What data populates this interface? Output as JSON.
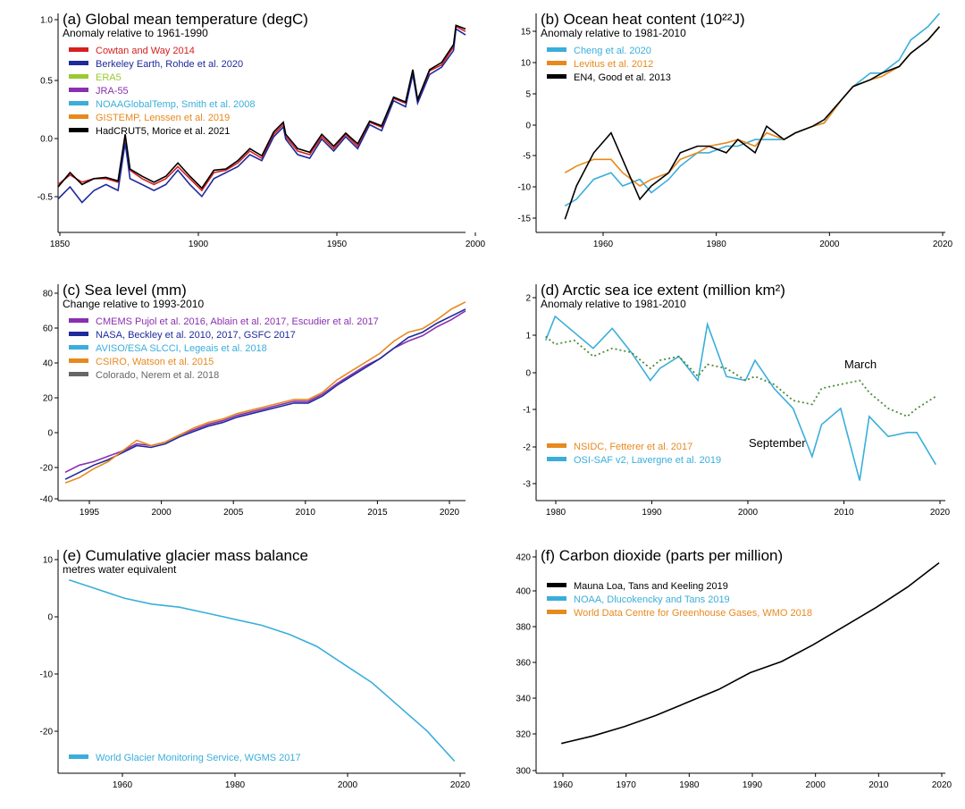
{
  "panels": [
    {
      "id": "a",
      "title": "(a) Global mean temperature (degC)",
      "subtitle": "Anomaly relative to 1961-1990",
      "x_ticks": [
        1850,
        1900,
        1950,
        2000
      ],
      "y_ticks": [
        "1.0",
        "0.5",
        "0.0",
        "-0.5"
      ],
      "legend": [
        {
          "label": "Cowtan and Way 2014",
          "color": "#d62020"
        },
        {
          "label": "Berkeley Earth, Rohde et al. 2020",
          "color": "#1f2a9c"
        },
        {
          "label": "ERA5",
          "color": "#9ac931"
        },
        {
          "label": "JRA-55",
          "color": "#8a2fb0"
        },
        {
          "label": "NOAAGlobalTemp, Smith et al. 2008",
          "color": "#3aaedb"
        },
        {
          "label": "GISTEMP, Lenssen et al. 2019",
          "color": "#e8891e"
        },
        {
          "label": "HadCRUT5, Morice et al. 2021",
          "color": "#000000"
        }
      ]
    },
    {
      "id": "b",
      "title": "(b) Ocean heat content (10²²J)",
      "subtitle": "Anomaly relative to 1981-2010",
      "x_ticks": [
        1960,
        1980,
        2000,
        2020
      ],
      "y_ticks": [
        "15",
        "10",
        "5",
        "0",
        "-5",
        "-10",
        "-15"
      ],
      "legend": [
        {
          "label": "Cheng et al. 2020",
          "color": "#3aaedb"
        },
        {
          "label": "Levitus et al. 2012",
          "color": "#e8891e"
        },
        {
          "label": "EN4, Good et al. 2013",
          "color": "#000000"
        }
      ]
    },
    {
      "id": "c",
      "title": "(c) Sea level (mm)",
      "subtitle": "Change relative to 1993-2010",
      "x_ticks": [
        1995,
        2000,
        2005,
        2010,
        2015,
        2020
      ],
      "y_ticks": [
        "80",
        "60",
        "40",
        "20",
        "0",
        "-20",
        "-40"
      ],
      "legend": [
        {
          "label": "CMEMS Pujol et al. 2016, Ablain et al. 2017, Escudier et al. 2017",
          "color": "#8a2fb0"
        },
        {
          "label": "NASA, Beckley et al. 2010, 2017, GSFC 2017",
          "color": "#1f2a9c"
        },
        {
          "label": "AVISO/ESA SLCCI, Legeais et al. 2018",
          "color": "#3aaedb"
        },
        {
          "label": "CSIRO, Watson et al. 2015",
          "color": "#e8891e"
        },
        {
          "label": "Colorado, Nerem et al. 2018",
          "color": "#666666"
        }
      ]
    },
    {
      "id": "d",
      "title": "(d) Arctic sea ice extent (million km²)",
      "subtitle": "Anomaly relative to 1981-2010",
      "x_ticks": [
        1980,
        1990,
        2000,
        2010,
        2020
      ],
      "y_ticks": [
        "2",
        "1",
        "0",
        "-1",
        "-2",
        "-3"
      ],
      "annotations": {
        "march": "March",
        "september": "September"
      },
      "legend": [
        {
          "label": "NSIDC, Fetterer et al. 2017",
          "color": "#e8891e"
        },
        {
          "label": "OSI-SAF v2, Lavergne et al. 2019",
          "color": "#3aaedb"
        }
      ]
    },
    {
      "id": "e",
      "title": "(e) Cumulative glacier mass balance",
      "subtitle": "metres water equivalent",
      "x_ticks": [
        1960,
        1980,
        2000,
        2020
      ],
      "y_ticks": [
        "10",
        "0",
        "-10",
        "-20"
      ],
      "legend": [
        {
          "label": "World Glacier Monitoring Service, WGMS 2017",
          "color": "#3aaedb"
        }
      ]
    },
    {
      "id": "f",
      "title": "(f) Carbon dioxide (parts per million)",
      "subtitle": "",
      "x_ticks": [
        1960,
        1970,
        1980,
        1990,
        2000,
        2010,
        2020
      ],
      "y_ticks": [
        "420",
        "400",
        "380",
        "360",
        "340",
        "320",
        "300"
      ],
      "legend": [
        {
          "label": "Mauna Loa, Tans and Keeling 2019",
          "color": "#000000"
        },
        {
          "label": "NOAA, Dlucokencky and Tans 2019",
          "color": "#3aaedb"
        },
        {
          "label": "World Data Centre for Greenhouse Gases, WMO 2018",
          "color": "#e8891e"
        }
      ]
    }
  ],
  "chart_data": [
    {
      "type": "line",
      "title": "(a) Global mean temperature (degC)",
      "xlim": [
        1850,
        2020
      ],
      "ylim": [
        -0.8,
        1.03
      ],
      "x": [
        1850,
        1855,
        1860,
        1865,
        1870,
        1875,
        1878,
        1880,
        1885,
        1890,
        1895,
        1900,
        1905,
        1910,
        1915,
        1920,
        1925,
        1930,
        1935,
        1940,
        1944,
        1945,
        1950,
        1955,
        1960,
        1965,
        1970,
        1975,
        1980,
        1985,
        1990,
        1995,
        1998,
        2000,
        2005,
        2010,
        2015,
        2016,
        2020
      ],
      "series": [
        {
          "name": "Cowtan and Way 2014",
          "values": [
            -0.4,
            -0.32,
            -0.38,
            -0.35,
            -0.35,
            -0.38,
            0.0,
            -0.28,
            -0.35,
            -0.4,
            -0.35,
            -0.25,
            -0.35,
            -0.45,
            -0.3,
            -0.28,
            -0.22,
            -0.12,
            -0.18,
            0.02,
            0.1,
            0.0,
            -0.12,
            -0.15,
            0.0,
            -0.1,
            0.02,
            -0.08,
            0.12,
            0.08,
            0.32,
            0.28,
            0.55,
            0.3,
            0.55,
            0.6,
            0.75,
            0.92,
            0.88
          ]
        },
        {
          "name": "Berkeley Earth, Rohde et al. 2020",
          "values": [
            -0.52,
            -0.42,
            -0.55,
            -0.45,
            -0.4,
            -0.45,
            -0.05,
            -0.35,
            -0.4,
            -0.45,
            -0.4,
            -0.28,
            -0.4,
            -0.5,
            -0.35,
            -0.3,
            -0.25,
            -0.15,
            -0.2,
            0.0,
            0.08,
            -0.02,
            -0.15,
            -0.18,
            -0.02,
            -0.12,
            0.0,
            -0.1,
            0.1,
            0.05,
            0.3,
            0.25,
            0.52,
            0.28,
            0.52,
            0.58,
            0.72,
            0.9,
            0.85
          ]
        },
        {
          "name": "HadCRUT5, Morice et al. 2021",
          "values": [
            -0.42,
            -0.3,
            -0.4,
            -0.35,
            -0.34,
            -0.37,
            0.02,
            -0.27,
            -0.33,
            -0.38,
            -0.33,
            -0.22,
            -0.33,
            -0.43,
            -0.28,
            -0.27,
            -0.2,
            -0.1,
            -0.16,
            0.04,
            0.12,
            0.02,
            -0.1,
            -0.13,
            0.02,
            -0.08,
            0.03,
            -0.06,
            0.13,
            0.09,
            0.33,
            0.29,
            0.56,
            0.31,
            0.56,
            0.62,
            0.77,
            0.93,
            0.9
          ]
        }
      ]
    },
    {
      "type": "line",
      "title": "(b) Ocean heat content (10²²J)",
      "xlim": [
        1950,
        2021
      ],
      "ylim": [
        -17,
        16
      ],
      "x": [
        1955,
        1957,
        1960,
        1963,
        1965,
        1968,
        1970,
        1973,
        1975,
        1978,
        1980,
        1983,
        1985,
        1988,
        1990,
        1993,
        1995,
        1998,
        2000,
        2003,
        2005,
        2008,
        2010,
        2013,
        2015,
        2018,
        2020
      ],
      "series": [
        {
          "name": "Cheng et al. 2020",
          "values": [
            -13,
            -12,
            -9,
            -8,
            -10,
            -9,
            -11,
            -9,
            -7,
            -5,
            -5,
            -4,
            -4,
            -3,
            -3,
            -3,
            -2,
            -1,
            -0.5,
            3,
            5,
            7,
            7,
            9,
            12,
            14,
            16
          ]
        },
        {
          "name": "Levitus et al. 2012",
          "values": [
            -8,
            -7,
            -6,
            -6,
            -8,
            -10,
            -9,
            -8,
            -6,
            -5,
            -4,
            -3.5,
            -3,
            -4,
            -2,
            -3,
            -2,
            -1,
            -0.5,
            3,
            5,
            6,
            6.5,
            8,
            10,
            12,
            14
          ]
        },
        {
          "name": "EN4, Good et al. 2013",
          "values": [
            -15,
            -10,
            -5,
            -2,
            -6,
            -12,
            -10,
            -8,
            -5,
            -4,
            -4,
            -5,
            -3,
            -5,
            -1,
            -3,
            -2,
            -1,
            0,
            3,
            5,
            6,
            7,
            8,
            10,
            12,
            14
          ]
        }
      ]
    },
    {
      "type": "line",
      "title": "(c) Sea level (mm)",
      "xlim": [
        1992.5,
        2021
      ],
      "ylim": [
        -40,
        82
      ],
      "x": [
        1993,
        1994,
        1995,
        1996,
        1997,
        1998,
        1999,
        2000,
        2001,
        2002,
        2003,
        2004,
        2005,
        2006,
        2007,
        2008,
        2009,
        2010,
        2011,
        2012,
        2013,
        2014,
        2015,
        2016,
        2017,
        2018,
        2019,
        2020,
        2021
      ],
      "series": [
        {
          "name": "CMEMS Pujol et al. 2016, Ablain et al. 2017, Escudier et al. 2017",
          "values": [
            -24,
            -20,
            -18,
            -15,
            -12,
            -8,
            -9,
            -7,
            -3,
            0,
            3,
            5,
            8,
            10,
            12,
            14,
            16,
            16,
            20,
            26,
            31,
            36,
            40,
            46,
            50,
            53,
            58,
            62,
            67
          ]
        },
        {
          "name": "NASA, Beckley et al. 2010, 2017, GSFC 2017",
          "values": [
            -28,
            -24,
            -20,
            -17,
            -13,
            -9,
            -10,
            -8,
            -4,
            -1,
            2,
            4,
            7,
            9,
            11,
            13,
            15,
            15,
            19,
            25,
            30,
            35,
            40,
            46,
            52,
            55,
            60,
            64,
            68
          ]
        },
        {
          "name": "CSIRO, Watson et al. 2015",
          "values": [
            -30,
            -27,
            -22,
            -18,
            -12,
            -6,
            -9,
            -7,
            -3,
            1,
            4,
            6,
            9,
            11,
            13,
            15,
            17,
            17,
            21,
            28,
            33,
            38,
            43,
            50,
            55,
            57,
            62,
            68,
            72
          ]
        }
      ]
    },
    {
      "type": "line",
      "title": "(d) Arctic sea ice extent (million km²)",
      "xlim": [
        1978,
        2021
      ],
      "ylim": [
        -3.3,
        2.1
      ],
      "x": [
        1979,
        1980,
        1982,
        1984,
        1986,
        1988,
        1990,
        1991,
        1993,
        1995,
        1996,
        1998,
        2000,
        2001,
        2003,
        2005,
        2007,
        2008,
        2010,
        2012,
        2013,
        2015,
        2017,
        2018,
        2020
      ],
      "series": [
        {
          "name": "September",
          "values": [
            0.7,
            1.3,
            0.9,
            0.5,
            1.0,
            0.4,
            -0.3,
            0.0,
            0.3,
            -0.3,
            1.1,
            -0.2,
            -0.3,
            0.2,
            -0.5,
            -1.0,
            -2.2,
            -1.4,
            -1.0,
            -2.8,
            -1.2,
            -1.7,
            -1.6,
            -1.6,
            -2.4
          ]
        },
        {
          "name": "March",
          "values": [
            0.8,
            0.6,
            0.7,
            0.3,
            0.5,
            0.4,
            0.0,
            0.2,
            0.3,
            -0.2,
            0.1,
            0.0,
            -0.3,
            -0.2,
            -0.4,
            -0.8,
            -0.9,
            -0.5,
            -0.4,
            -0.3,
            -0.6,
            -1.0,
            -1.2,
            -1.0,
            -0.7
          ]
        }
      ]
    },
    {
      "type": "line",
      "title": "(e) Cumulative glacier mass balance",
      "xlim": [
        1948,
        2022
      ],
      "ylim": [
        -27,
        10
      ],
      "x": [
        1950,
        1955,
        1960,
        1965,
        1970,
        1975,
        1980,
        1985,
        1990,
        1995,
        2000,
        2005,
        2010,
        2015,
        2020
      ],
      "series": [
        {
          "name": "World Glacier Monitoring Service, WGMS 2017",
          "values": [
            5,
            3.5,
            2,
            1,
            0.5,
            -0.5,
            -1.5,
            -2.5,
            -4,
            -6,
            -9,
            -12,
            -16,
            -20,
            -25
          ]
        }
      ]
    },
    {
      "type": "line",
      "title": "(f) Carbon dioxide (parts per million)",
      "xlim": [
        1956,
        2021
      ],
      "ylim": [
        300,
        420
      ],
      "x": [
        1960,
        1965,
        1970,
        1975,
        1980,
        1985,
        1990,
        1995,
        2000,
        2005,
        2010,
        2015,
        2020
      ],
      "series": [
        {
          "name": "Mauna Loa, Tans and Keeling 2019",
          "values": [
            316,
            320,
            325,
            331,
            338,
            345,
            354,
            360,
            369,
            379,
            389,
            400,
            413
          ]
        }
      ]
    }
  ]
}
